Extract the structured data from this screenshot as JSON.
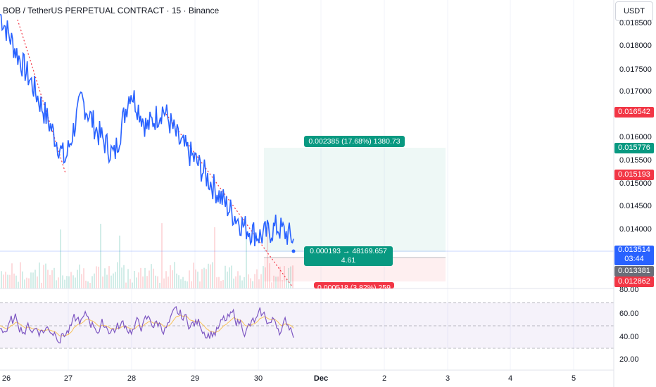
{
  "header": {
    "title": "BOB / TetherUS PERPETUAL CONTRACT · 15 · Binance",
    "currency": "USDT"
  },
  "y_axis_labels": [
    "0.018500",
    "0.018000",
    "0.017500",
    "0.017000",
    "0.016000",
    "0.015500",
    "0.015000",
    "0.014500",
    "0.014000"
  ],
  "rsi_axis_labels": [
    "80.00",
    "60.00",
    "40.00",
    "20.00"
  ],
  "price_badges": {
    "red_1": "0.016542",
    "green": "0.015776",
    "red_2": "0.015193",
    "current_price": "0.013514",
    "current_countdown": "03:44",
    "gray": "0.013381",
    "red_3": "0.012862"
  },
  "position": {
    "target_label": "0.002385 (17.68%) 1380.73",
    "entry_label": "0.000193 → 48169.657",
    "entry_ratio": "4.61",
    "stop_label": "0.000518 (3.82%) 259"
  },
  "x_axis_labels": [
    "26",
    "27",
    "28",
    "29",
    "30",
    "Dec",
    "2",
    "3",
    "4",
    "5"
  ],
  "colors": {
    "accent_blue": "#2962ff",
    "red": "#f23645",
    "green": "#089981",
    "rsi_purple": "#7e57c2",
    "rsi_ma": "#f7c35a"
  },
  "chart_data": {
    "type": "line",
    "title": "BOB / TetherUS PERPETUAL CONTRACT · 15 · Binance",
    "x": [
      "26",
      "26.25",
      "26.5",
      "26.75",
      "27",
      "27.25",
      "27.5",
      "27.75",
      "28",
      "28.25",
      "28.5",
      "28.75",
      "29",
      "29.25",
      "29.5",
      "29.75",
      "30",
      "30.25",
      "30.5"
    ],
    "series": [
      {
        "values": [
          0.0183,
          0.0175,
          0.0168,
          0.016,
          0.0152,
          0.0165,
          0.0158,
          0.0153,
          0.0167,
          0.0159,
          0.0163,
          0.0156,
          0.0152,
          0.0147,
          0.0142,
          0.0138,
          0.0136,
          0.0138,
          0.01355
        ]
      }
    ],
    "ylim": [
      0.0125,
      0.0186
    ],
    "rsi": {
      "ylim": [
        20,
        80
      ],
      "bands": [
        70,
        50,
        30
      ]
    },
    "grid": true
  }
}
